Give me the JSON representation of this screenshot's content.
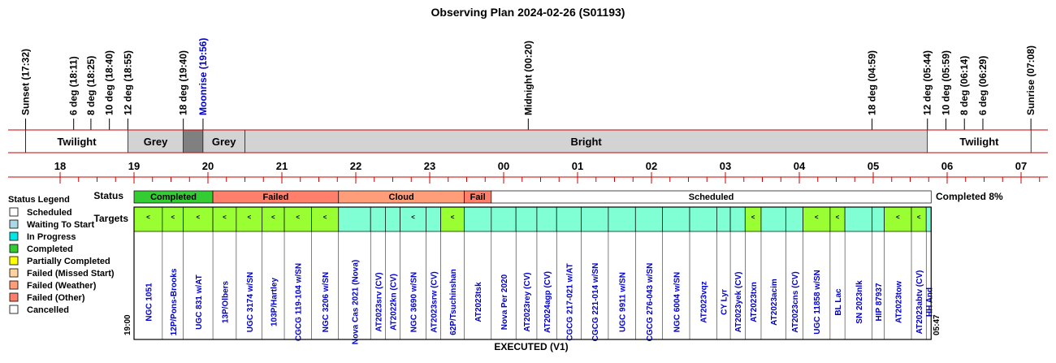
{
  "chart_data": {
    "type": "timeline",
    "title": "Observing Plan 2024-02-26 (S01193)",
    "footer": "EXECUTED (V1)",
    "start_label": "19:00",
    "end_label": "05:47",
    "completion": "Completed 8%",
    "row_labels": {
      "status": "Status",
      "targets": "Targets"
    },
    "events": [
      {
        "label": "Sunset (17:32)",
        "time": "17:32",
        "color": "#000000"
      },
      {
        "label": "6 deg (18:11)",
        "time": "18:11",
        "color": "#000000"
      },
      {
        "label": "8 deg (18:25)",
        "time": "18:25",
        "color": "#000000"
      },
      {
        "label": "10 deg (18:40)",
        "time": "18:40",
        "color": "#000000"
      },
      {
        "label": "12 deg (18:55)",
        "time": "18:55",
        "color": "#000000"
      },
      {
        "label": "18 deg (19:40)",
        "time": "19:40",
        "color": "#000000"
      },
      {
        "label": "Moonrise (19:56)",
        "time": "19:56",
        "color": "#0000cc"
      },
      {
        "label": "Midnight (00:20)",
        "time": "00:20",
        "color": "#000000"
      },
      {
        "label": "18 deg (04:59)",
        "time": "04:59",
        "color": "#000000"
      },
      {
        "label": "12 deg (05:44)",
        "time": "05:44",
        "color": "#000000"
      },
      {
        "label": "10 deg (05:59)",
        "time": "05:59",
        "color": "#000000"
      },
      {
        "label": "8 deg (06:14)",
        "time": "06:14",
        "color": "#000000"
      },
      {
        "label": "6 deg (06:29)",
        "time": "06:29",
        "color": "#000000"
      },
      {
        "label": "Sunrise (07:08)",
        "time": "07:08",
        "color": "#000000"
      }
    ],
    "sky_bands": [
      {
        "label": "Twilight",
        "start": "17:32",
        "end": "18:55",
        "color": "#ffffff"
      },
      {
        "label": "Grey",
        "start": "18:55",
        "end": "19:40",
        "color": "#d3d3d3"
      },
      {
        "label": "",
        "start": "19:40",
        "end": "19:56",
        "color": "#808080"
      },
      {
        "label": "Grey",
        "start": "19:56",
        "end": "20:30",
        "color": "#d3d3d3"
      },
      {
        "label": "Bright",
        "start": "20:30",
        "end": "05:44",
        "color": "#d3d3d3"
      },
      {
        "label": "Twilight",
        "start": "05:44",
        "end": "07:08",
        "color": "#ffffff"
      }
    ],
    "hour_ticks": [
      "18",
      "19",
      "20",
      "21",
      "22",
      "23",
      "00",
      "01",
      "02",
      "03",
      "04",
      "05",
      "06",
      "07"
    ],
    "status_blocks": [
      {
        "label": "Completed",
        "start": "19:00",
        "end": "20:04",
        "color": "#33cc33"
      },
      {
        "label": "Failed",
        "start": "20:04",
        "end": "21:46",
        "color": "#ff7f6a"
      },
      {
        "label": "Cloud",
        "start": "21:46",
        "end": "23:28",
        "color": "#ff9d79"
      },
      {
        "label": "Fail",
        "start": "23:28",
        "end": "23:50",
        "color": "#ff7f6a"
      },
      {
        "label": "Scheduled",
        "start": "23:50",
        "end": "05:47",
        "color": "#ffffff"
      }
    ],
    "targets": [
      {
        "name": "NGC 1051",
        "start": "19:00",
        "end": "19:23",
        "color": "#99ff33",
        "mark": "<"
      },
      {
        "name": "12P/Pons-Brooks",
        "start": "19:23",
        "end": "19:40",
        "color": "#99ff33",
        "mark": "<"
      },
      {
        "name": "UGC 831 w/AT",
        "start": "19:40",
        "end": "20:04",
        "color": "#99ff33",
        "mark": "<"
      },
      {
        "name": "13P/Olbers",
        "start": "20:04",
        "end": "20:23",
        "color": "#99ff33",
        "mark": "<"
      },
      {
        "name": "UGC 3174 w/SN",
        "start": "20:23",
        "end": "20:44",
        "color": "#99ff33",
        "mark": "<"
      },
      {
        "name": "103P/Hartley",
        "start": "20:44",
        "end": "21:02",
        "color": "#99ff33",
        "mark": "<"
      },
      {
        "name": "CGCG 119-104 w/SN",
        "start": "21:02",
        "end": "21:24",
        "color": "#99ff33",
        "mark": "<"
      },
      {
        "name": "NGC 3206 w/SN",
        "start": "21:24",
        "end": "21:46",
        "color": "#99ff33",
        "mark": "<"
      },
      {
        "name": "Nova Cas 2021 (Nova)",
        "start": "21:46",
        "end": "22:12",
        "color": "#80ffd4",
        "mark": ""
      },
      {
        "name": "AT2023srv (CV)",
        "start": "22:12",
        "end": "22:24",
        "color": "#80ffd4",
        "mark": ""
      },
      {
        "name": "AT2022kn (CV)",
        "start": "22:24",
        "end": "22:36",
        "color": "#80ffd4",
        "mark": ""
      },
      {
        "name": "NGC 3690 w/SN",
        "start": "22:36",
        "end": "22:57",
        "color": "#80ffd4",
        "mark": "<"
      },
      {
        "name": "AT2023srw (CV)",
        "start": "22:57",
        "end": "23:09",
        "color": "#80ffd4",
        "mark": ""
      },
      {
        "name": "62P/Tsuchinshan",
        "start": "23:09",
        "end": "23:28",
        "color": "#99ff33",
        "mark": "<"
      },
      {
        "name": "AT2023tsk",
        "start": "23:28",
        "end": "23:50",
        "color": "#80ffd4",
        "mark": ""
      },
      {
        "name": "Nova Per 2020",
        "start": "23:50",
        "end": "00:10",
        "color": "#80ffd4",
        "mark": ""
      },
      {
        "name": "AT2023rey (CV)",
        "start": "00:10",
        "end": "00:27",
        "color": "#80ffd4",
        "mark": ""
      },
      {
        "name": "AT2024agp (CV)",
        "start": "00:27",
        "end": "00:43",
        "color": "#80ffd4",
        "mark": ""
      },
      {
        "name": "CGCG 217-021 w/AT",
        "start": "00:43",
        "end": "01:03",
        "color": "#80ffd4",
        "mark": ""
      },
      {
        "name": "CGCG 221-014 w/SN",
        "start": "01:03",
        "end": "01:25",
        "color": "#80ffd4",
        "mark": ""
      },
      {
        "name": "UGC 9911 w/SN",
        "start": "01:25",
        "end": "01:47",
        "color": "#80ffd4",
        "mark": ""
      },
      {
        "name": "CGCG 276-043 w/SN",
        "start": "01:47",
        "end": "02:09",
        "color": "#80ffd4",
        "mark": ""
      },
      {
        "name": "NGC 6004 w/SN",
        "start": "02:09",
        "end": "02:31",
        "color": "#80ffd4",
        "mark": ""
      },
      {
        "name": "AT2023vqz",
        "start": "02:31",
        "end": "02:53",
        "color": "#80ffd4",
        "mark": ""
      },
      {
        "name": "CY Lyr",
        "start": "02:53",
        "end": "03:04",
        "color": "#80ffd4",
        "mark": ""
      },
      {
        "name": "AT2023yek (CV)",
        "start": "03:04",
        "end": "03:16",
        "color": "#80ffd4",
        "mark": ""
      },
      {
        "name": "AT2023txn",
        "start": "03:16",
        "end": "03:29",
        "color": "#99ff33",
        "mark": "<"
      },
      {
        "name": "AT2023acim",
        "start": "03:29",
        "end": "03:49",
        "color": "#80ffd4",
        "mark": ""
      },
      {
        "name": "AT2023cns (CV)",
        "start": "03:49",
        "end": "04:03",
        "color": "#80ffd4",
        "mark": ""
      },
      {
        "name": "UGC 11858 w/SN",
        "start": "04:03",
        "end": "04:25",
        "color": "#99ff33",
        "mark": "<"
      },
      {
        "name": "BL Lac",
        "start": "04:25",
        "end": "04:37",
        "color": "#99ff33",
        "mark": "<"
      },
      {
        "name": "SN 2023nlk",
        "start": "04:37",
        "end": "04:59",
        "color": "#80ffd4",
        "mark": ""
      },
      {
        "name": "HIP 87937",
        "start": "04:59",
        "end": "05:09",
        "color": "#80ffd4",
        "mark": ""
      },
      {
        "name": "AT2023tow",
        "start": "05:09",
        "end": "05:31",
        "color": "#99ff33",
        "mark": "<"
      },
      {
        "name": "AT2023abtv (CV)",
        "start": "05:31",
        "end": "05:43",
        "color": "#99ff33",
        "mark": "<"
      },
      {
        "name": "HH And",
        "start": "05:43",
        "end": "05:47",
        "color": "#80ffd4",
        "mark": ""
      }
    ],
    "legend": {
      "title": "Status Legend",
      "items": [
        {
          "label": "Scheduled",
          "color": "#ffffff"
        },
        {
          "label": "Waiting To Start",
          "color": "#add8e6"
        },
        {
          "label": "In Progress",
          "color": "#00e5e5"
        },
        {
          "label": "Completed",
          "color": "#33cc33"
        },
        {
          "label": "Partially Completed",
          "color": "#ffff00"
        },
        {
          "label": "Failed (Missed Start)",
          "color": "#ffd3a0"
        },
        {
          "label": "Failed (Weather)",
          "color": "#ff9d79"
        },
        {
          "label": "Failed (Other)",
          "color": "#ff7f6a"
        },
        {
          "label": "Cancelled",
          "color": "#ffffff"
        }
      ]
    }
  }
}
